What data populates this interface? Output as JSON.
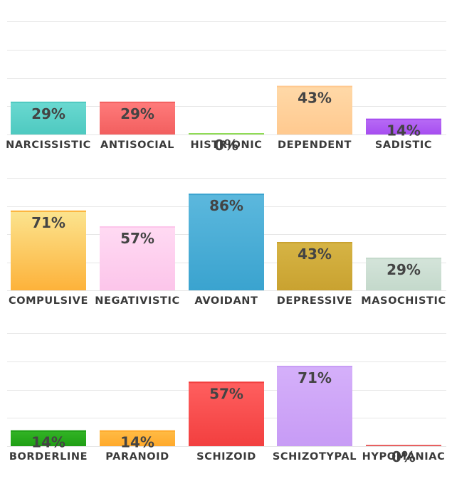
{
  "chart_data": [
    {
      "type": "bar",
      "categories": [
        "NARCISSISTIC",
        "ANTISOCIAL",
        "HISTRIONIC",
        "DEPENDENT",
        "SADISTIC"
      ],
      "values": [
        29,
        29,
        0,
        43,
        14
      ],
      "value_labels": [
        "29%",
        "29%",
        "0%",
        "43%",
        "14%"
      ],
      "colors": [
        {
          "top": "#6ad9d1",
          "bottom": "#4ec9c0"
        },
        {
          "top": "#ff7b7b",
          "bottom": "#f25f5f"
        },
        {
          "top": "#a6e86f",
          "bottom": "#8fdc55"
        },
        {
          "top": "#ffd9a8",
          "bottom": "#ffc98f"
        },
        {
          "top": "#b86cf5",
          "bottom": "#a64df0"
        }
      ],
      "ylim": [
        0,
        100
      ],
      "grid": true
    },
    {
      "type": "bar",
      "categories": [
        "COMPULSIVE",
        "NEGATIVISTIC",
        "AVOIDANT",
        "DEPRESSIVE",
        "MASOCHISTIC"
      ],
      "values": [
        71,
        57,
        86,
        43,
        29
      ],
      "value_labels": [
        "71%",
        "57%",
        "86%",
        "43%",
        "29%"
      ],
      "colors": [
        {
          "top": "#fbe48f",
          "bottom": "#fdb23a"
        },
        {
          "top": "#ffdaf3",
          "bottom": "#fcc5ea"
        },
        {
          "top": "#5cb8dd",
          "bottom": "#3aa3cf"
        },
        {
          "top": "#d6b445",
          "bottom": "#c9a230"
        },
        {
          "top": "#d4e4da",
          "bottom": "#c4d9cb"
        }
      ],
      "ylim": [
        0,
        100
      ],
      "grid": true
    },
    {
      "type": "bar",
      "categories": [
        "BORDERLINE",
        "PARANOID",
        "SCHIZOID",
        "SCHIZOTYPAL",
        "HYPOMANIAC"
      ],
      "values": [
        14,
        14,
        57,
        71,
        0
      ],
      "value_labels": [
        "14%",
        "14%",
        "57%",
        "71%",
        "0%"
      ],
      "colors": [
        {
          "top": "#33b526",
          "bottom": "#1f9e14"
        },
        {
          "top": "#ffbc46",
          "bottom": "#ffa92b"
        },
        {
          "top": "#ff5f5f",
          "bottom": "#f23f3f"
        },
        {
          "top": "#d5b0fa",
          "bottom": "#c79bf5"
        },
        {
          "top": "#ff8080",
          "bottom": "#e86060"
        }
      ],
      "ylim": [
        0,
        100
      ],
      "grid": true
    }
  ]
}
